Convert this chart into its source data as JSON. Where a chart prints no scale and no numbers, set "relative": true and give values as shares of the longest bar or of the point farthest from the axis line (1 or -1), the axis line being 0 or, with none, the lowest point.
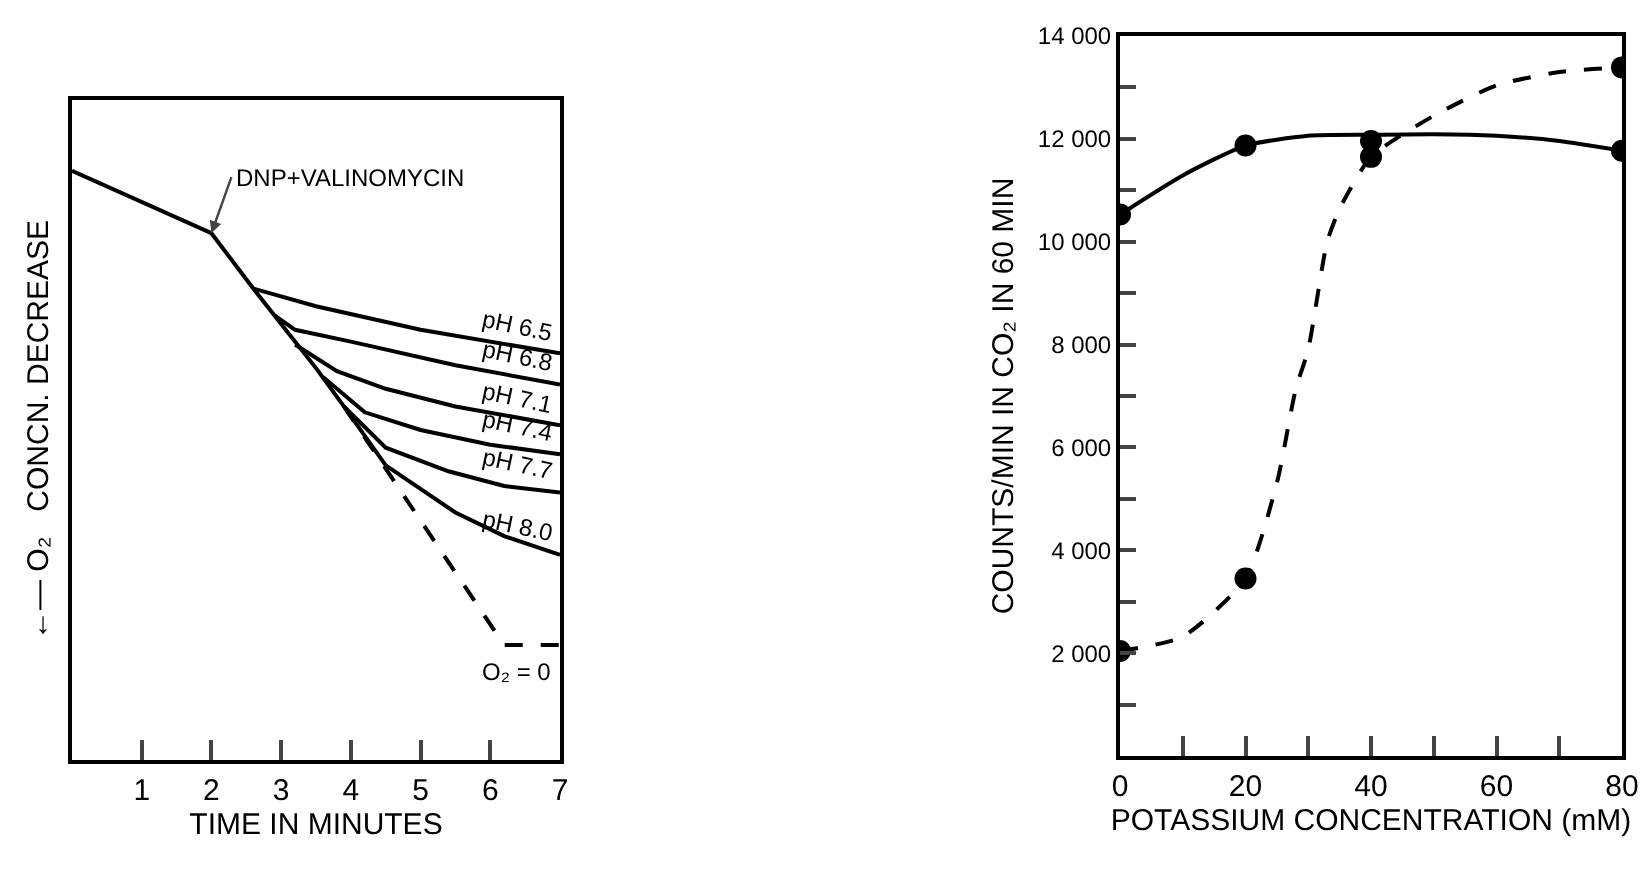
{
  "chart_data": [
    {
      "type": "line",
      "relative": true,
      "xlabel": "TIME IN MINUTES",
      "ylabel": "←— O₂   CONCN. DECREASE",
      "xlim": [
        0,
        7
      ],
      "xticks": [
        1,
        2,
        3,
        4,
        5,
        6,
        7
      ],
      "grid": false,
      "legend": false,
      "tick_labels": "x",
      "annotations": [
        {
          "text": "DNP+VALINOMYCIN",
          "x": 2,
          "y": 0.894
        },
        {
          "text": "O₂ = 0",
          "x": 6.6,
          "y": 0.195
        }
      ],
      "series": [
        {
          "name": "pH 6.5",
          "color": "#000000",
          "x": [
            2.6,
            3.5,
            5,
            7
          ],
          "values": [
            0.8,
            0.77,
            0.73,
            0.69
          ]
        },
        {
          "name": "pH 6.8",
          "color": "#000000",
          "x": [
            2.9,
            3.2,
            4,
            5.5,
            7
          ],
          "values": [
            0.755,
            0.73,
            0.71,
            0.67,
            0.637
          ]
        },
        {
          "name": "pH 7.1",
          "color": "#000000",
          "x": [
            3.2,
            3.8,
            4.5,
            5.5,
            7
          ],
          "values": [
            0.705,
            0.66,
            0.63,
            0.6,
            0.568
          ]
        },
        {
          "name": "pH 7.4",
          "color": "#000000",
          "x": [
            3.6,
            4.2,
            5,
            6,
            7
          ],
          "values": [
            0.65,
            0.59,
            0.56,
            0.535,
            0.519
          ]
        },
        {
          "name": "pH 7.7",
          "color": "#000000",
          "x": [
            3.9,
            4.5,
            5.4,
            6.2,
            7
          ],
          "values": [
            0.6,
            0.53,
            0.49,
            0.465,
            0.454
          ]
        },
        {
          "name": "pH 8.0",
          "color": "#000000",
          "x": [
            0,
            2,
            2.6,
            3,
            3.5,
            3.9,
            4.5,
            5.5,
            6.2,
            7
          ],
          "values": [
            1,
            0.894,
            0.8,
            0.74,
            0.665,
            0.6,
            0.5,
            0.42,
            0.38,
            0.348
          ]
        },
        {
          "color": "#000000",
          "line_style": "dashed",
          "x": [
            3.9,
            6.2,
            7
          ],
          "values": [
            0.6,
            0.195,
            0.195
          ]
        }
      ]
    },
    {
      "type": "scatter",
      "xlabel": "POTASSIUM CONCENTRATION (mM)",
      "ylabel": "COUNTS/MIN IN CO₂ IN 60 MIN",
      "xlim": [
        0,
        80
      ],
      "xticks": [
        0,
        {
          "value": 10,
          "label": null
        },
        20,
        {
          "value": 30,
          "label": null
        },
        40,
        {
          "value": 50,
          "label": null
        },
        60,
        {
          "value": 70,
          "label": null
        },
        80
      ],
      "ylim": [
        0,
        14000
      ],
      "yticks": [
        {
          "value": 1000,
          "label": null
        },
        {
          "value": 2000,
          "label": "2 000"
        },
        {
          "value": 3000,
          "label": null
        },
        {
          "value": 4000,
          "label": "4 000"
        },
        {
          "value": 5000,
          "label": null
        },
        {
          "value": 6000,
          "label": "6 000"
        },
        {
          "value": 7000,
          "label": null
        },
        {
          "value": 8000,
          "label": "8 000"
        },
        {
          "value": 9000,
          "label": null
        },
        {
          "value": 10000,
          "label": "10 000"
        },
        {
          "value": 11000,
          "label": null
        },
        {
          "value": 12000,
          "label": "12 000"
        },
        {
          "value": 13000,
          "label": null
        },
        {
          "value": 14000,
          "label": "14 000"
        }
      ],
      "grid": false,
      "legend": false,
      "series": [
        {
          "color": "#000000",
          "marker": "circle",
          "x": [
            0,
            20,
            40,
            80
          ],
          "values": [
            10530,
            11870,
            11960,
            11770
          ]
        },
        {
          "color": "#000000",
          "marker": "circle",
          "x": [
            0,
            20,
            40,
            80
          ],
          "values": [
            2040,
            3450,
            11650,
            13390
          ]
        },
        {
          "type": "line",
          "color": "#000000",
          "x": [
            0,
            10,
            20,
            30,
            40,
            50,
            60,
            70,
            80
          ],
          "values": [
            10530,
            11290,
            11870,
            12060,
            12080,
            12090,
            12060,
            11960,
            11770
          ]
        },
        {
          "type": "line",
          "color": "#000000",
          "line_style": "dashed",
          "x": [
            0,
            10,
            20,
            25,
            28,
            30,
            33,
            35,
            40,
            50,
            60,
            70,
            80
          ],
          "values": [
            2040,
            2320,
            3450,
            5310,
            7130,
            7910,
            9990,
            10640,
            11650,
            12450,
            13040,
            13300,
            13390
          ]
        }
      ]
    }
  ]
}
